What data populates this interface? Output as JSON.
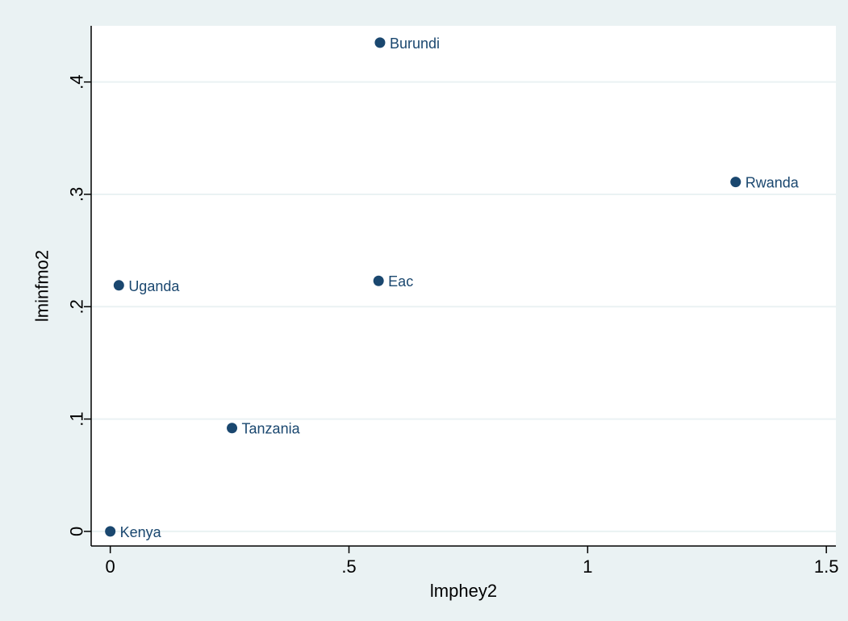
{
  "chart_data": {
    "type": "scatter",
    "title": "",
    "xlabel": "lmphey2",
    "ylabel": "lminfmo2",
    "xlim": [
      -0.04,
      1.52
    ],
    "ylim": [
      -0.013,
      0.45
    ],
    "x_ticks": [
      0,
      0.5,
      1,
      1.5
    ],
    "x_tick_labels": [
      "0",
      ".5",
      "1",
      "1.5"
    ],
    "y_ticks": [
      0,
      0.1,
      0.2,
      0.3,
      0.4
    ],
    "y_tick_labels": [
      "0",
      ".1",
      ".2",
      ".3",
      ".4"
    ],
    "grid": true,
    "series": [
      {
        "points": [
          {
            "label": "Burundi",
            "x": 0.565,
            "y": 0.435
          },
          {
            "label": "Rwanda",
            "x": 1.31,
            "y": 0.311
          },
          {
            "label": "Eac",
            "x": 0.562,
            "y": 0.223
          },
          {
            "label": "Uganda",
            "x": 0.018,
            "y": 0.219
          },
          {
            "label": "Tanzania",
            "x": 0.255,
            "y": 0.092
          },
          {
            "label": "Kenya",
            "x": 0.0,
            "y": 0.0
          }
        ]
      }
    ]
  },
  "colors": {
    "outer_background": "#eaf2f3",
    "plot_background": "#ffffff",
    "grid": "#eaf2f3",
    "marker": "#1a476f",
    "label": "#1a476f",
    "axis": "#000000"
  }
}
